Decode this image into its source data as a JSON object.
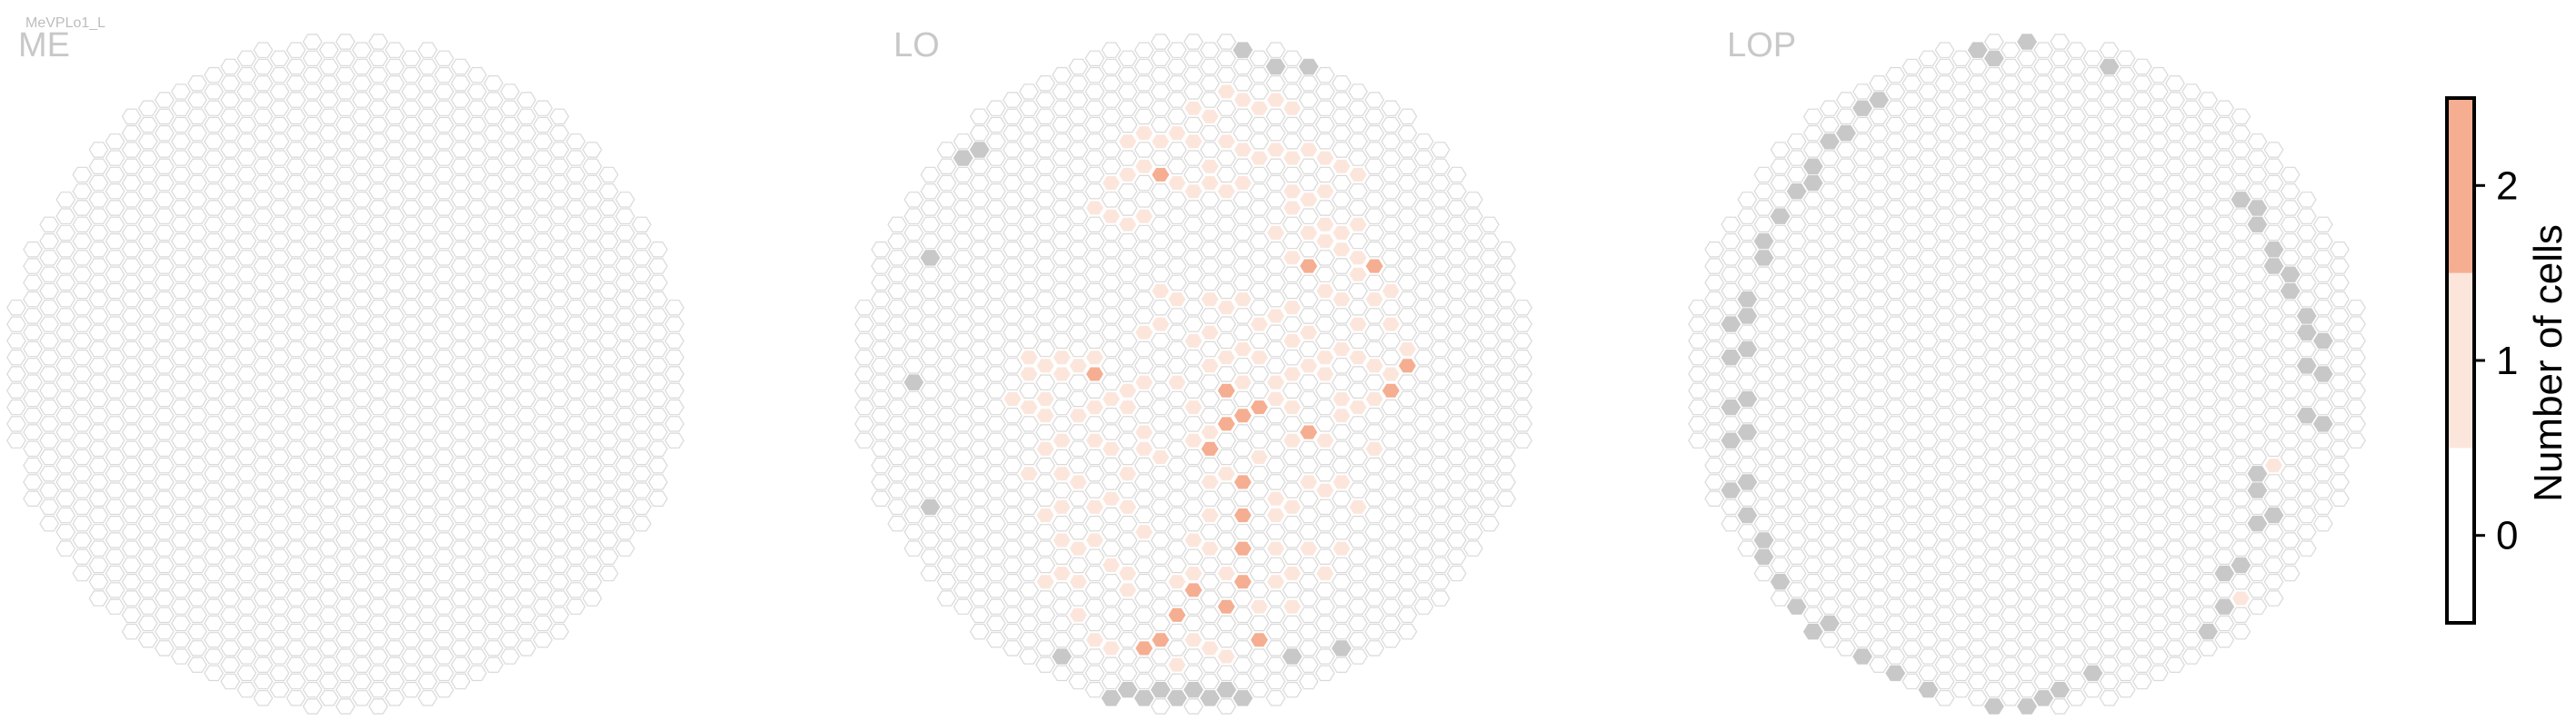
{
  "chart_data": {
    "type": "heatmap",
    "subtitle": "MeVPLo1_L",
    "panels": [
      {
        "name": "ME",
        "radius_cols": 18,
        "hex_count_note": "",
        "highlighted": [],
        "gray": []
      },
      {
        "name": "LO",
        "radius_cols": 17,
        "highlighted": [
          [
            0,
            -16,
            1
          ],
          [
            1,
            -16,
            1
          ],
          [
            2,
            -17,
            1
          ],
          [
            3,
            -17,
            1
          ],
          [
            4,
            -16,
            1
          ],
          [
            5,
            -17,
            1
          ],
          [
            6,
            -16,
            1
          ],
          [
            -4,
            -14,
            1
          ],
          [
            -3,
            -15,
            1
          ],
          [
            -2,
            -14,
            1
          ],
          [
            -1,
            -15,
            1
          ],
          [
            0,
            -14,
            1
          ],
          [
            1,
            -13,
            1
          ],
          [
            2,
            -14,
            1
          ],
          [
            3,
            -14,
            1
          ],
          [
            4,
            -13,
            1
          ],
          [
            5,
            -14,
            1
          ],
          [
            6,
            -13,
            1
          ],
          [
            7,
            -14,
            1
          ],
          [
            8,
            -13,
            1
          ],
          [
            9,
            -13,
            1
          ],
          [
            -5,
            -12,
            1
          ],
          [
            -4,
            -12,
            1
          ],
          [
            -3,
            -13,
            1
          ],
          [
            -2,
            -12,
            2
          ],
          [
            -1,
            -12,
            1
          ],
          [
            0,
            -11,
            1
          ],
          [
            1,
            -12,
            1
          ],
          [
            2,
            -11,
            1
          ],
          [
            3,
            -12,
            1
          ],
          [
            6,
            -11,
            1
          ],
          [
            7,
            -11,
            1
          ],
          [
            8,
            -11,
            1
          ],
          [
            10,
            -12,
            1
          ],
          [
            -6,
            -10,
            1
          ],
          [
            -5,
            -10,
            1
          ],
          [
            -4,
            -9,
            1
          ],
          [
            -3,
            -10,
            1
          ],
          [
            5,
            -9,
            1
          ],
          [
            6,
            -10,
            1
          ],
          [
            7,
            -9,
            1
          ],
          [
            8,
            -9,
            1
          ],
          [
            9,
            -9,
            1
          ],
          [
            10,
            -9,
            1
          ],
          [
            6,
            -7,
            1
          ],
          [
            7,
            -7,
            2
          ],
          [
            8,
            -8,
            1
          ],
          [
            9,
            -8,
            1
          ],
          [
            10,
            -7,
            1
          ],
          [
            11,
            -7,
            2
          ],
          [
            -2,
            -5,
            1
          ],
          [
            -1,
            -5,
            1
          ],
          [
            1,
            -5,
            1
          ],
          [
            2,
            -4,
            1
          ],
          [
            3,
            -5,
            1
          ],
          [
            5,
            -4,
            1
          ],
          [
            6,
            -4,
            1
          ],
          [
            8,
            -5,
            1
          ],
          [
            9,
            -5,
            1
          ],
          [
            10,
            -6,
            1
          ],
          [
            11,
            -5,
            1
          ],
          [
            12,
            -5,
            1
          ],
          [
            -3,
            -3,
            1
          ],
          [
            -2,
            -3,
            1
          ],
          [
            0,
            -2,
            1
          ],
          [
            1,
            -3,
            1
          ],
          [
            3,
            -2,
            1
          ],
          [
            4,
            -3,
            1
          ],
          [
            6,
            -2,
            1
          ],
          [
            7,
            -3,
            1
          ],
          [
            9,
            -2,
            1
          ],
          [
            10,
            -3,
            1
          ],
          [
            12,
            -3,
            1
          ],
          [
            13,
            -2,
            1
          ],
          [
            -10,
            -1,
            1
          ],
          [
            -9,
            -1,
            1
          ],
          [
            -8,
            -1,
            1
          ],
          [
            -7,
            -1,
            1
          ],
          [
            -6,
            -1,
            1
          ],
          [
            1,
            -1,
            1
          ],
          [
            2,
            -1,
            1
          ],
          [
            4,
            -1,
            1
          ],
          [
            5,
            0,
            1
          ],
          [
            7,
            -1,
            1
          ],
          [
            8,
            -1,
            1
          ],
          [
            10,
            -1,
            1
          ],
          [
            11,
            -1,
            1
          ],
          [
            12,
            0,
            1
          ],
          [
            13,
            -1,
            2
          ],
          [
            -11,
            1,
            1
          ],
          [
            -10,
            0,
            1
          ],
          [
            -9,
            1,
            1
          ],
          [
            -8,
            0,
            1
          ],
          [
            -6,
            0,
            2
          ],
          [
            -5,
            1,
            1
          ],
          [
            -4,
            1,
            1
          ],
          [
            -3,
            0,
            1
          ],
          [
            -1,
            0,
            1
          ],
          [
            2,
            1,
            2
          ],
          [
            3,
            0,
            1
          ],
          [
            5,
            1,
            1
          ],
          [
            6,
            0,
            1
          ],
          [
            8,
            0,
            1
          ],
          [
            9,
            1,
            1
          ],
          [
            11,
            1,
            1
          ],
          [
            12,
            1,
            2
          ],
          [
            -10,
            2,
            1
          ],
          [
            -9,
            2,
            1
          ],
          [
            -7,
            2,
            1
          ],
          [
            -6,
            2,
            1
          ],
          [
            -4,
            2,
            1
          ],
          [
            -3,
            3,
            1
          ],
          [
            0,
            2,
            1
          ],
          [
            1,
            3,
            1
          ],
          [
            3,
            2,
            2
          ],
          [
            4,
            2,
            2
          ],
          [
            6,
            2,
            1
          ],
          [
            7,
            3,
            2
          ],
          [
            9,
            2,
            1
          ],
          [
            10,
            2,
            1
          ],
          [
            -9,
            4,
            1
          ],
          [
            -8,
            4,
            1
          ],
          [
            -6,
            4,
            1
          ],
          [
            -5,
            4,
            1
          ],
          [
            -3,
            4,
            1
          ],
          [
            -2,
            5,
            1
          ],
          [
            0,
            4,
            1
          ],
          [
            1,
            4,
            2
          ],
          [
            2,
            3,
            2
          ],
          [
            4,
            5,
            1
          ],
          [
            6,
            4,
            1
          ],
          [
            8,
            4,
            1
          ],
          [
            11,
            4,
            1
          ],
          [
            -10,
            6,
            1
          ],
          [
            -8,
            6,
            1
          ],
          [
            -7,
            6,
            1
          ],
          [
            -5,
            7,
            1
          ],
          [
            -4,
            6,
            1
          ],
          [
            1,
            6,
            1
          ],
          [
            2,
            6,
            1
          ],
          [
            3,
            6,
            2
          ],
          [
            5,
            7,
            1
          ],
          [
            7,
            6,
            1
          ],
          [
            9,
            6,
            1
          ],
          [
            -9,
            8,
            1
          ],
          [
            -8,
            8,
            1
          ],
          [
            -6,
            8,
            1
          ],
          [
            -4,
            8,
            1
          ],
          [
            -3,
            9,
            1
          ],
          [
            1,
            8,
            1
          ],
          [
            3,
            8,
            2
          ],
          [
            5,
            8,
            1
          ],
          [
            6,
            8,
            1
          ],
          [
            8,
            7,
            1
          ],
          [
            10,
            8,
            1
          ],
          [
            -8,
            10,
            1
          ],
          [
            -7,
            10,
            1
          ],
          [
            -6,
            10,
            1
          ],
          [
            -5,
            11,
            1
          ],
          [
            0,
            10,
            1
          ],
          [
            1,
            10,
            1
          ],
          [
            3,
            10,
            2
          ],
          [
            5,
            10,
            1
          ],
          [
            7,
            10,
            1
          ],
          [
            9,
            10,
            1
          ],
          [
            -9,
            12,
            1
          ],
          [
            -8,
            12,
            1
          ],
          [
            -7,
            12,
            1
          ],
          [
            -4,
            12,
            1
          ],
          [
            -1,
            12,
            1
          ],
          [
            0,
            12,
            1
          ],
          [
            2,
            12,
            1
          ],
          [
            3,
            12,
            2
          ],
          [
            5,
            12,
            1
          ],
          [
            6,
            12,
            1
          ],
          [
            8,
            12,
            1
          ],
          [
            -7,
            14,
            1
          ],
          [
            -4,
            13,
            1
          ],
          [
            -1,
            14,
            2
          ],
          [
            0,
            13,
            2
          ],
          [
            2,
            14,
            2
          ],
          [
            4,
            14,
            1
          ],
          [
            6,
            14,
            1
          ],
          [
            -6,
            16,
            1
          ],
          [
            -5,
            16,
            1
          ],
          [
            -3,
            16,
            2
          ],
          [
            -2,
            16,
            2
          ],
          [
            -1,
            17,
            1
          ],
          [
            0,
            16,
            1
          ],
          [
            1,
            16,
            1
          ],
          [
            2,
            17,
            1
          ],
          [
            4,
            16,
            2
          ]
        ],
        "gray": [
          [
            -17,
            0
          ],
          [
            -16,
            -7
          ],
          [
            -14,
            -13
          ],
          [
            -13,
            -14
          ],
          [
            3,
            -20
          ],
          [
            5,
            -19
          ],
          [
            7,
            -19
          ],
          [
            -16,
            8
          ],
          [
            -5,
            19
          ],
          [
            -4,
            19
          ],
          [
            -3,
            19
          ],
          [
            -2,
            19
          ],
          [
            -1,
            19
          ],
          [
            0,
            19
          ],
          [
            1,
            19
          ],
          [
            2,
            19
          ],
          [
            3,
            19
          ],
          [
            6,
            17
          ],
          [
            9,
            16
          ],
          [
            -8,
            17
          ]
        ]
      },
      {
        "name": "LOP",
        "radius_cols": 17,
        "highlighted": [
          [
            15,
            5,
            1
          ],
          [
            13,
            13,
            1
          ]
        ],
        "gray": [
          [
            -3,
            -20
          ],
          [
            -2,
            -19
          ],
          [
            0,
            -20
          ],
          [
            4,
            -20
          ],
          [
            5,
            -19
          ],
          [
            -9,
            -17
          ],
          [
            -10,
            -16
          ],
          [
            -11,
            -15
          ],
          [
            -12,
            -14
          ],
          [
            -13,
            -13
          ],
          [
            -13,
            -12
          ],
          [
            -14,
            -11
          ],
          [
            -15,
            -10
          ],
          [
            -16,
            -8
          ],
          [
            -16,
            -7
          ],
          [
            -17,
            -5
          ],
          [
            -17,
            -4
          ],
          [
            -18,
            -3
          ],
          [
            -17,
            -2
          ],
          [
            -18,
            -1
          ],
          [
            -17,
            1
          ],
          [
            -18,
            2
          ],
          [
            -17,
            3
          ],
          [
            -18,
            4
          ],
          [
            -17,
            6
          ],
          [
            -18,
            7
          ],
          [
            -17,
            8
          ],
          [
            -16,
            10
          ],
          [
            -16,
            11
          ],
          [
            -15,
            12
          ],
          [
            -14,
            14
          ],
          [
            -13,
            15
          ],
          [
            -12,
            15
          ],
          [
            -11,
            17
          ],
          [
            -10,
            17
          ],
          [
            -8,
            18
          ],
          [
            -7,
            19
          ],
          [
            -6,
            19
          ],
          [
            -5,
            20
          ],
          [
            -4,
            20
          ],
          [
            -2,
            20
          ],
          [
            0,
            20
          ],
          [
            1,
            19
          ],
          [
            2,
            19
          ],
          [
            4,
            18
          ],
          [
            13,
            -11
          ],
          [
            14,
            -10
          ],
          [
            14,
            -9
          ],
          [
            15,
            -8
          ],
          [
            15,
            -7
          ],
          [
            16,
            -6
          ],
          [
            16,
            -5
          ],
          [
            17,
            -4
          ],
          [
            17,
            -3
          ],
          [
            18,
            -2
          ],
          [
            17,
            -1
          ],
          [
            18,
            0
          ],
          [
            17,
            2
          ],
          [
            18,
            3
          ],
          [
            14,
            6
          ],
          [
            14,
            7
          ],
          [
            15,
            8
          ],
          [
            14,
            9
          ],
          [
            13,
            11
          ],
          [
            12,
            12
          ],
          [
            12,
            14
          ],
          [
            11,
            15
          ]
        ]
      }
    ],
    "colorbar": {
      "label": "Number of cells",
      "ticks": [
        "0",
        "1",
        "2"
      ],
      "levels": [
        0,
        1,
        2
      ],
      "colors": [
        "#ffffff",
        "#fce6dc",
        "#f5ae92"
      ],
      "gray_color": "#c8c8c8",
      "empty_stroke": "#d9d9d9"
    },
    "xlabel": "",
    "ylabel": ""
  }
}
